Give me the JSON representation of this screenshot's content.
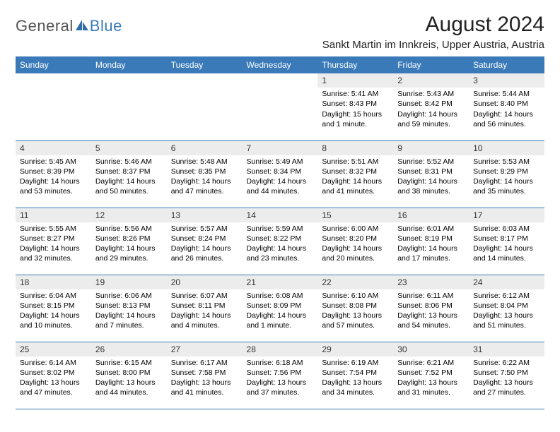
{
  "brand": {
    "part1": "General",
    "part2": "Blue"
  },
  "title": "August 2024",
  "location": "Sankt Martin im Innkreis, Upper Austria, Austria",
  "colors": {
    "header_bg": "#3a7ab8",
    "header_text": "#ffffff",
    "daynum_bg": "#ececec",
    "rule": "#3a7ab8",
    "logo_gray": "#555555",
    "logo_blue": "#3a7ab8",
    "body_text": "#000000"
  },
  "day_headers": [
    "Sunday",
    "Monday",
    "Tuesday",
    "Wednesday",
    "Thursday",
    "Friday",
    "Saturday"
  ],
  "weeks": [
    [
      null,
      null,
      null,
      null,
      {
        "n": "1",
        "sr": "5:41 AM",
        "ss": "8:43 PM",
        "dl": "15 hours and 1 minute."
      },
      {
        "n": "2",
        "sr": "5:43 AM",
        "ss": "8:42 PM",
        "dl": "14 hours and 59 minutes."
      },
      {
        "n": "3",
        "sr": "5:44 AM",
        "ss": "8:40 PM",
        "dl": "14 hours and 56 minutes."
      }
    ],
    [
      {
        "n": "4",
        "sr": "5:45 AM",
        "ss": "8:39 PM",
        "dl": "14 hours and 53 minutes."
      },
      {
        "n": "5",
        "sr": "5:46 AM",
        "ss": "8:37 PM",
        "dl": "14 hours and 50 minutes."
      },
      {
        "n": "6",
        "sr": "5:48 AM",
        "ss": "8:35 PM",
        "dl": "14 hours and 47 minutes."
      },
      {
        "n": "7",
        "sr": "5:49 AM",
        "ss": "8:34 PM",
        "dl": "14 hours and 44 minutes."
      },
      {
        "n": "8",
        "sr": "5:51 AM",
        "ss": "8:32 PM",
        "dl": "14 hours and 41 minutes."
      },
      {
        "n": "9",
        "sr": "5:52 AM",
        "ss": "8:31 PM",
        "dl": "14 hours and 38 minutes."
      },
      {
        "n": "10",
        "sr": "5:53 AM",
        "ss": "8:29 PM",
        "dl": "14 hours and 35 minutes."
      }
    ],
    [
      {
        "n": "11",
        "sr": "5:55 AM",
        "ss": "8:27 PM",
        "dl": "14 hours and 32 minutes."
      },
      {
        "n": "12",
        "sr": "5:56 AM",
        "ss": "8:26 PM",
        "dl": "14 hours and 29 minutes."
      },
      {
        "n": "13",
        "sr": "5:57 AM",
        "ss": "8:24 PM",
        "dl": "14 hours and 26 minutes."
      },
      {
        "n": "14",
        "sr": "5:59 AM",
        "ss": "8:22 PM",
        "dl": "14 hours and 23 minutes."
      },
      {
        "n": "15",
        "sr": "6:00 AM",
        "ss": "8:20 PM",
        "dl": "14 hours and 20 minutes."
      },
      {
        "n": "16",
        "sr": "6:01 AM",
        "ss": "8:19 PM",
        "dl": "14 hours and 17 minutes."
      },
      {
        "n": "17",
        "sr": "6:03 AM",
        "ss": "8:17 PM",
        "dl": "14 hours and 14 minutes."
      }
    ],
    [
      {
        "n": "18",
        "sr": "6:04 AM",
        "ss": "8:15 PM",
        "dl": "14 hours and 10 minutes."
      },
      {
        "n": "19",
        "sr": "6:06 AM",
        "ss": "8:13 PM",
        "dl": "14 hours and 7 minutes."
      },
      {
        "n": "20",
        "sr": "6:07 AM",
        "ss": "8:11 PM",
        "dl": "14 hours and 4 minutes."
      },
      {
        "n": "21",
        "sr": "6:08 AM",
        "ss": "8:09 PM",
        "dl": "14 hours and 1 minute."
      },
      {
        "n": "22",
        "sr": "6:10 AM",
        "ss": "8:08 PM",
        "dl": "13 hours and 57 minutes."
      },
      {
        "n": "23",
        "sr": "6:11 AM",
        "ss": "8:06 PM",
        "dl": "13 hours and 54 minutes."
      },
      {
        "n": "24",
        "sr": "6:12 AM",
        "ss": "8:04 PM",
        "dl": "13 hours and 51 minutes."
      }
    ],
    [
      {
        "n": "25",
        "sr": "6:14 AM",
        "ss": "8:02 PM",
        "dl": "13 hours and 47 minutes."
      },
      {
        "n": "26",
        "sr": "6:15 AM",
        "ss": "8:00 PM",
        "dl": "13 hours and 44 minutes."
      },
      {
        "n": "27",
        "sr": "6:17 AM",
        "ss": "7:58 PM",
        "dl": "13 hours and 41 minutes."
      },
      {
        "n": "28",
        "sr": "6:18 AM",
        "ss": "7:56 PM",
        "dl": "13 hours and 37 minutes."
      },
      {
        "n": "29",
        "sr": "6:19 AM",
        "ss": "7:54 PM",
        "dl": "13 hours and 34 minutes."
      },
      {
        "n": "30",
        "sr": "6:21 AM",
        "ss": "7:52 PM",
        "dl": "13 hours and 31 minutes."
      },
      {
        "n": "31",
        "sr": "6:22 AM",
        "ss": "7:50 PM",
        "dl": "13 hours and 27 minutes."
      }
    ]
  ],
  "labels": {
    "sunrise": "Sunrise:",
    "sunset": "Sunset:",
    "daylight": "Daylight:"
  }
}
